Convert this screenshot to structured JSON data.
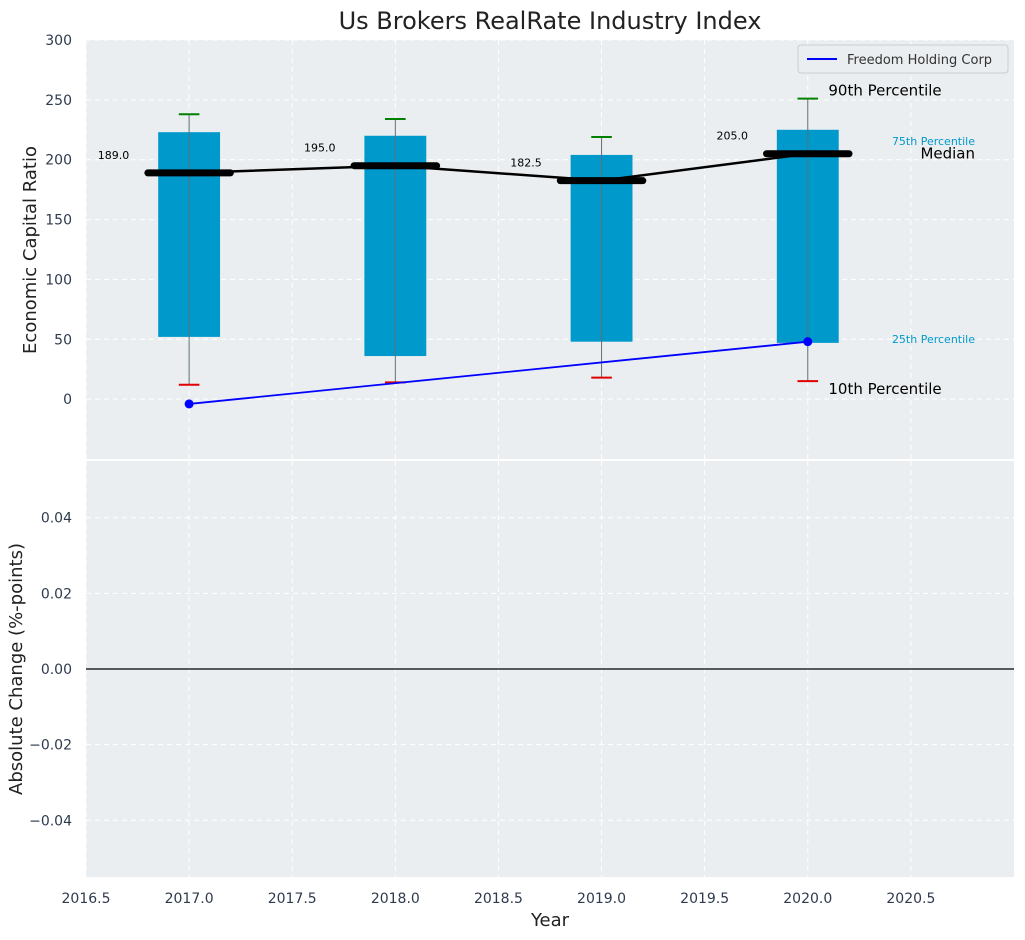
{
  "figure": {
    "title": "Us Brokers RealRate Industry Index",
    "xlabel": "Year"
  },
  "chart_data": [
    {
      "type": "bar",
      "title": "Us Brokers RealRate Industry Index",
      "xlabel": "",
      "ylabel": "Economic Capital Ratio",
      "xlim": [
        2016.5,
        2021.0
      ],
      "ylim": [
        -50,
        300
      ],
      "yticks": [
        0,
        50,
        100,
        150,
        200,
        250,
        300
      ],
      "grid": true,
      "legend_position": "top-right",
      "years": [
        2017,
        2018,
        2019,
        2020
      ],
      "percentiles": {
        "p10": [
          12,
          14,
          18,
          15
        ],
        "p25": [
          52,
          36,
          48,
          47
        ],
        "median": [
          189.0,
          195.0,
          182.5,
          205.0
        ],
        "p75": [
          223,
          220,
          204,
          225
        ],
        "p90": [
          238,
          234,
          219,
          251
        ]
      },
      "median_labels": [
        "189.0",
        "195.0",
        "182.5",
        "205.0"
      ],
      "series": [
        {
          "name": "Freedom Holding Corp",
          "x": [
            2017,
            2020
          ],
          "y": [
            -4,
            48
          ],
          "color": "#0000ff"
        }
      ],
      "annotations": {
        "p90": "90th Percentile",
        "p75": "75th Percentile",
        "median": "Median",
        "p25": "25th Percentile",
        "p10": "10th Percentile"
      },
      "colors": {
        "box": "#0099cc",
        "median": "#000000",
        "p90_cap": "#008000",
        "p10_cap": "#e00000",
        "background": "#eaeef0"
      }
    },
    {
      "type": "line",
      "xlabel": "Year",
      "ylabel": "Absolute Change (%-points)",
      "xlim": [
        2016.5,
        2021.0
      ],
      "ylim": [
        -0.055,
        0.055
      ],
      "yticks": [
        -0.04,
        -0.02,
        0.0,
        0.02,
        0.04
      ],
      "ytick_labels": [
        "−0.04",
        "−0.02",
        "0.00",
        "0.02",
        "0.04"
      ],
      "xticks": [
        2016.5,
        2017.0,
        2017.5,
        2018.0,
        2018.5,
        2019.0,
        2019.5,
        2020.0,
        2020.5
      ],
      "xtick_labels": [
        "2016.5",
        "2017.0",
        "2017.5",
        "2018.0",
        "2018.5",
        "2019.0",
        "2019.5",
        "2020.0",
        "2020.5"
      ],
      "reference_line": 0.0,
      "grid": true
    }
  ]
}
